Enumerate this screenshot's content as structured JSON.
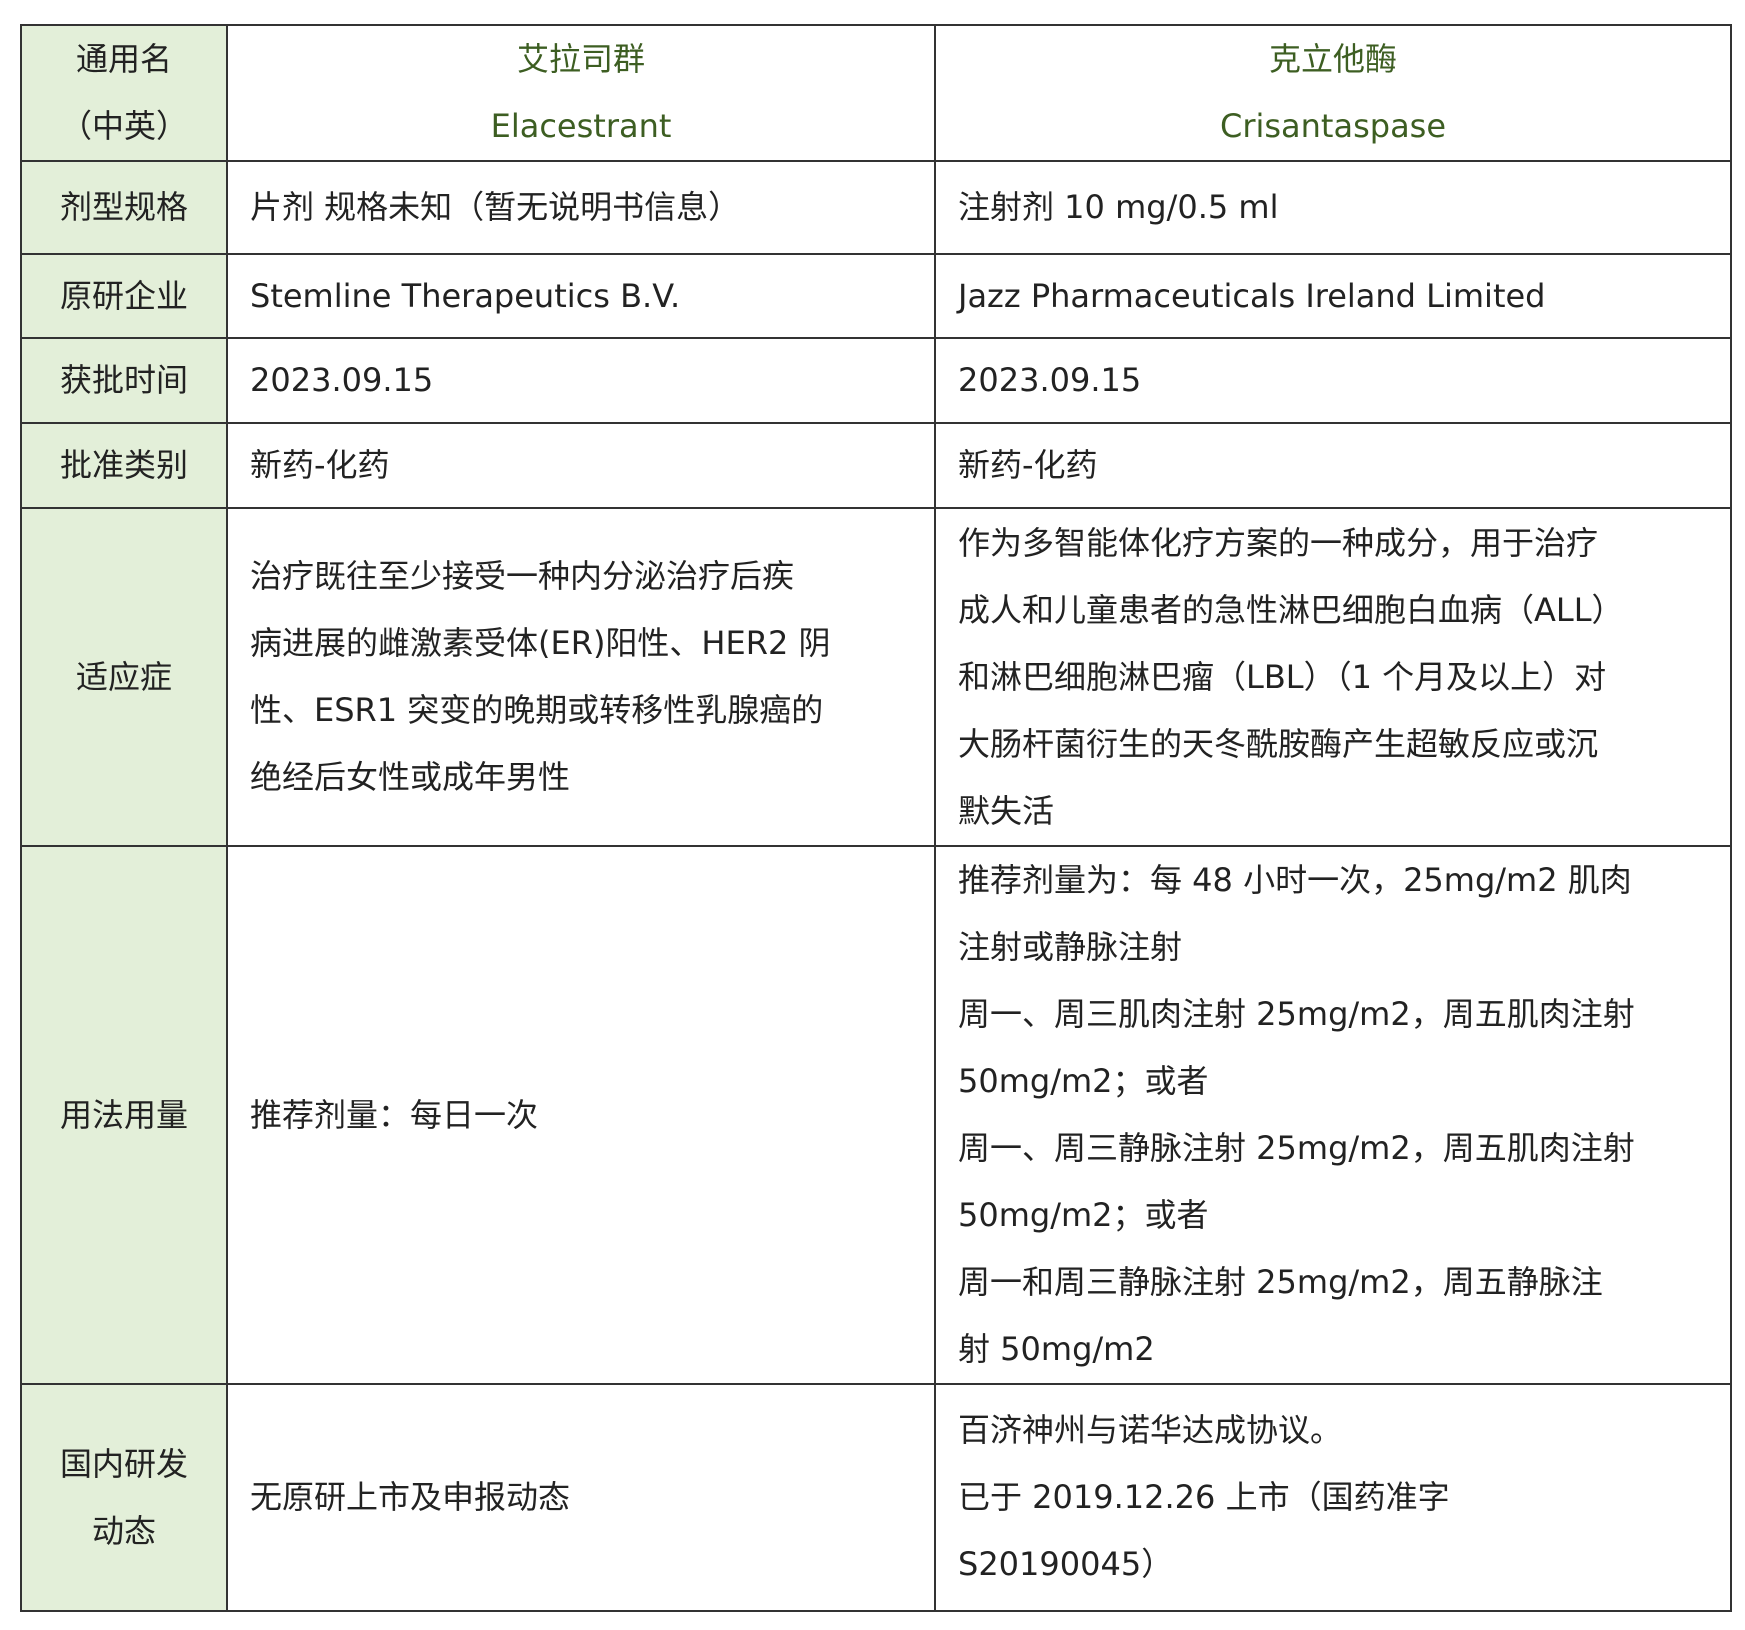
{
  "header": {
    "label": [
      "通用名",
      "（中英）"
    ],
    "drug1": {
      "cn": "艾拉司群",
      "en": "Elacestrant"
    },
    "drug2": {
      "cn": "克立他酶",
      "en": "Crisantaspase"
    },
    "name_color": "#3d5e22",
    "label_bg": "#e3efd9"
  },
  "rows": [
    {
      "label": [
        "剂型规格"
      ],
      "c1": [
        "片剂  规格未知（暂无说明书信息）"
      ],
      "c2": [
        "注射剂 10 mg/0.5 ml"
      ]
    },
    {
      "label": [
        "原研企业"
      ],
      "c1": [
        "Stemline Therapeutics B.V."
      ],
      "c2": [
        "Jazz Pharmaceuticals Ireland Limited"
      ]
    },
    {
      "label": [
        "获批时间"
      ],
      "c1": [
        "2023.09.15"
      ],
      "c2": [
        "2023.09.15"
      ]
    },
    {
      "label": [
        "批准类别"
      ],
      "c1": [
        "新药-化药"
      ],
      "c2": [
        "新药-化药"
      ]
    },
    {
      "label": [
        "适应症"
      ],
      "c1": [
        "治疗既往至少接受一种内分泌治疗后疾",
        "病进展的雌激素受体(ER)阳性、HER2 阴",
        "性、ESR1 突变的晚期或转移性乳腺癌的",
        "绝经后女性或成年男性"
      ],
      "c2": [
        "作为多智能体化疗方案的一种成分，用于治疗",
        "成人和儿童患者的急性淋巴细胞白血病（ALL）",
        "和淋巴细胞淋巴瘤（LBL）（1 个月及以上）对",
        "大肠杆菌衍生的天冬酰胺酶产生超敏反应或沉",
        "默失活"
      ]
    },
    {
      "label": [
        "用法用量"
      ],
      "c1": [
        "推荐剂量：每日一次"
      ],
      "c2": [
        "推荐剂量为：每 48 小时一次，25mg/m2 肌肉",
        "注射或静脉注射",
        "周一、周三肌肉注射 25mg/m2，周五肌肉注射",
        "50mg/m2；或者",
        "周一、周三静脉注射 25mg/m2，周五肌肉注射",
        "50mg/m2；或者",
        "周一和周三静脉注射  25mg/m2，周五静脉注",
        "射 50mg/m2"
      ]
    },
    {
      "label": [
        "国内研发",
        "动态"
      ],
      "c1": [
        "无原研上市及申报动态"
      ],
      "c2": [
        "百济神州与诺华达成协议。",
        "已于 2019.12.26 上市（国药准字",
        "S20190045）"
      ]
    }
  ]
}
